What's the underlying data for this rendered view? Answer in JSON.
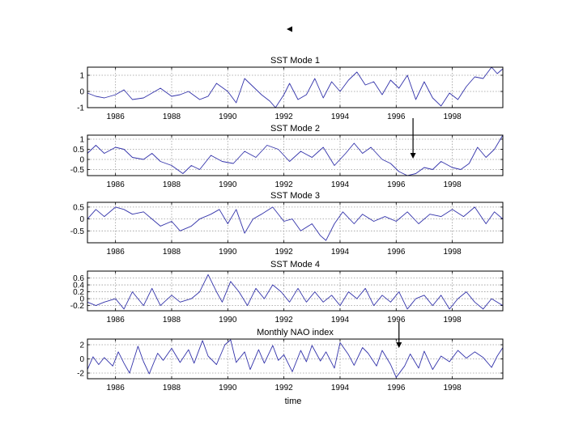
{
  "figure": {
    "marker_icon": "left-triangle-icon",
    "xlabel": "time",
    "line_color": "#3333aa",
    "grid_color": "#9a9a9a",
    "x_ticks": [
      "1986",
      "1988",
      "1990",
      "1992",
      "1994",
      "1996",
      "1998"
    ]
  },
  "chart_data": [
    {
      "type": "line",
      "title": "SST Mode 1",
      "xlim": [
        1985.0,
        1999.8
      ],
      "ylim": [
        -1,
        1.5
      ],
      "x_ticks": [
        1986,
        1988,
        1990,
        1992,
        1994,
        1996,
        1998
      ],
      "y_ticks": [
        1,
        0,
        -1
      ],
      "y_tick_labels": [
        "1",
        "0",
        "-1"
      ],
      "grid": true,
      "points": [
        [
          1985.0,
          -0.1
        ],
        [
          1985.3,
          -0.3
        ],
        [
          1985.6,
          -0.4
        ],
        [
          1986.0,
          -0.2
        ],
        [
          1986.3,
          0.1
        ],
        [
          1986.6,
          -0.5
        ],
        [
          1987.0,
          -0.4
        ],
        [
          1987.3,
          -0.1
        ],
        [
          1987.6,
          0.2
        ],
        [
          1988.0,
          -0.3
        ],
        [
          1988.3,
          -0.2
        ],
        [
          1988.6,
          0.0
        ],
        [
          1989.0,
          -0.5
        ],
        [
          1989.3,
          -0.3
        ],
        [
          1989.6,
          0.5
        ],
        [
          1990.0,
          0.0
        ],
        [
          1990.3,
          -0.7
        ],
        [
          1990.6,
          0.8
        ],
        [
          1990.9,
          0.3
        ],
        [
          1991.2,
          -0.2
        ],
        [
          1991.5,
          -0.6
        ],
        [
          1991.7,
          -1.0
        ],
        [
          1992.0,
          -0.2
        ],
        [
          1992.2,
          0.5
        ],
        [
          1992.5,
          -0.5
        ],
        [
          1992.8,
          -0.2
        ],
        [
          1993.1,
          0.8
        ],
        [
          1993.4,
          -0.4
        ],
        [
          1993.7,
          0.6
        ],
        [
          1994.0,
          0.0
        ],
        [
          1994.3,
          0.7
        ],
        [
          1994.6,
          1.2
        ],
        [
          1994.9,
          0.4
        ],
        [
          1995.2,
          0.6
        ],
        [
          1995.5,
          -0.2
        ],
        [
          1995.8,
          0.7
        ],
        [
          1996.1,
          0.2
        ],
        [
          1996.4,
          1.0
        ],
        [
          1996.7,
          -0.5
        ],
        [
          1997.0,
          0.6
        ],
        [
          1997.3,
          -0.4
        ],
        [
          1997.6,
          -0.9
        ],
        [
          1997.9,
          -0.1
        ],
        [
          1998.2,
          -0.5
        ],
        [
          1998.5,
          0.3
        ],
        [
          1998.8,
          0.9
        ],
        [
          1999.1,
          0.8
        ],
        [
          1999.4,
          1.5
        ],
        [
          1999.6,
          1.1
        ],
        [
          1999.8,
          1.4
        ]
      ]
    },
    {
      "type": "line",
      "title": "SST Mode 2",
      "xlim": [
        1985.0,
        1999.8
      ],
      "ylim": [
        -0.8,
        1.2
      ],
      "x_ticks": [
        1986,
        1988,
        1990,
        1992,
        1994,
        1996,
        1998
      ],
      "y_ticks": [
        1,
        0.5,
        0,
        -0.5
      ],
      "y_tick_labels": [
        "1",
        "0.5",
        "0",
        "-0.5"
      ],
      "grid": true,
      "points": [
        [
          1985.0,
          0.3
        ],
        [
          1985.3,
          0.7
        ],
        [
          1985.6,
          0.3
        ],
        [
          1986.0,
          0.6
        ],
        [
          1986.3,
          0.5
        ],
        [
          1986.6,
          0.1
        ],
        [
          1987.0,
          0.0
        ],
        [
          1987.3,
          0.3
        ],
        [
          1987.6,
          -0.1
        ],
        [
          1988.0,
          -0.3
        ],
        [
          1988.4,
          -0.7
        ],
        [
          1988.7,
          -0.3
        ],
        [
          1989.0,
          -0.5
        ],
        [
          1989.4,
          0.2
        ],
        [
          1989.8,
          -0.1
        ],
        [
          1990.2,
          -0.2
        ],
        [
          1990.6,
          0.4
        ],
        [
          1991.0,
          0.1
        ],
        [
          1991.4,
          0.7
        ],
        [
          1991.8,
          0.5
        ],
        [
          1992.2,
          -0.1
        ],
        [
          1992.6,
          0.4
        ],
        [
          1993.0,
          0.1
        ],
        [
          1993.4,
          0.6
        ],
        [
          1993.8,
          -0.3
        ],
        [
          1994.2,
          0.3
        ],
        [
          1994.5,
          0.8
        ],
        [
          1994.8,
          0.3
        ],
        [
          1995.1,
          0.6
        ],
        [
          1995.5,
          0.0
        ],
        [
          1995.8,
          -0.2
        ],
        [
          1996.1,
          -0.6
        ],
        [
          1996.4,
          -0.8
        ],
        [
          1996.7,
          -0.7
        ],
        [
          1997.0,
          -0.4
        ],
        [
          1997.3,
          -0.5
        ],
        [
          1997.6,
          -0.1
        ],
        [
          1998.0,
          -0.4
        ],
        [
          1998.3,
          -0.5
        ],
        [
          1998.6,
          -0.2
        ],
        [
          1998.9,
          0.6
        ],
        [
          1999.2,
          0.1
        ],
        [
          1999.5,
          0.5
        ],
        [
          1999.8,
          1.2
        ]
      ]
    },
    {
      "type": "line",
      "title": "SST Mode 3",
      "xlim": [
        1985.0,
        1999.8
      ],
      "ylim": [
        -1.0,
        0.7
      ],
      "x_ticks": [
        1986,
        1988,
        1990,
        1992,
        1994,
        1996,
        1998
      ],
      "y_ticks": [
        0.5,
        0,
        -0.5
      ],
      "y_tick_labels": [
        "0.5",
        "0",
        "-0.5"
      ],
      "grid": true,
      "points": [
        [
          1985.0,
          0.0
        ],
        [
          1985.3,
          0.4
        ],
        [
          1985.6,
          0.1
        ],
        [
          1986.0,
          0.5
        ],
        [
          1986.3,
          0.4
        ],
        [
          1986.6,
          0.2
        ],
        [
          1987.0,
          0.3
        ],
        [
          1987.3,
          0.0
        ],
        [
          1987.6,
          -0.3
        ],
        [
          1988.0,
          -0.1
        ],
        [
          1988.3,
          -0.5
        ],
        [
          1988.7,
          -0.3
        ],
        [
          1989.0,
          0.0
        ],
        [
          1989.4,
          0.2
        ],
        [
          1989.7,
          0.4
        ],
        [
          1990.0,
          -0.2
        ],
        [
          1990.3,
          0.4
        ],
        [
          1990.6,
          -0.6
        ],
        [
          1990.9,
          0.0
        ],
        [
          1991.2,
          0.2
        ],
        [
          1991.6,
          0.5
        ],
        [
          1992.0,
          -0.1
        ],
        [
          1992.3,
          0.0
        ],
        [
          1992.6,
          -0.5
        ],
        [
          1993.0,
          -0.2
        ],
        [
          1993.3,
          -0.7
        ],
        [
          1993.5,
          -0.9
        ],
        [
          1993.8,
          -0.2
        ],
        [
          1994.1,
          0.3
        ],
        [
          1994.5,
          -0.2
        ],
        [
          1994.8,
          0.2
        ],
        [
          1995.2,
          -0.1
        ],
        [
          1995.6,
          0.1
        ],
        [
          1996.0,
          -0.1
        ],
        [
          1996.4,
          0.3
        ],
        [
          1996.8,
          -0.2
        ],
        [
          1997.2,
          0.2
        ],
        [
          1997.6,
          0.1
        ],
        [
          1998.0,
          0.4
        ],
        [
          1998.4,
          0.1
        ],
        [
          1998.8,
          0.5
        ],
        [
          1999.2,
          -0.2
        ],
        [
          1999.5,
          0.3
        ],
        [
          1999.8,
          0.0
        ]
      ]
    },
    {
      "type": "line",
      "title": "SST Mode 4",
      "xlim": [
        1985.0,
        1999.8
      ],
      "ylim": [
        -0.35,
        0.8
      ],
      "x_ticks": [
        1986,
        1988,
        1990,
        1992,
        1994,
        1996,
        1998
      ],
      "y_ticks": [
        0.6,
        0.4,
        0.2,
        0,
        -0.2
      ],
      "y_tick_labels": [
        "0.6",
        "0.4",
        "0.2",
        "0",
        "-0.2"
      ],
      "grid": true,
      "points": [
        [
          1985.0,
          -0.1
        ],
        [
          1985.3,
          -0.2
        ],
        [
          1985.6,
          -0.1
        ],
        [
          1986.0,
          0.0
        ],
        [
          1986.3,
          -0.3
        ],
        [
          1986.6,
          0.2
        ],
        [
          1986.8,
          0.0
        ],
        [
          1987.0,
          -0.2
        ],
        [
          1987.3,
          0.3
        ],
        [
          1987.6,
          -0.2
        ],
        [
          1988.0,
          0.1
        ],
        [
          1988.3,
          -0.1
        ],
        [
          1988.7,
          0.0
        ],
        [
          1989.0,
          0.2
        ],
        [
          1989.3,
          0.7
        ],
        [
          1989.6,
          0.2
        ],
        [
          1989.8,
          -0.1
        ],
        [
          1990.1,
          0.5
        ],
        [
          1990.4,
          0.2
        ],
        [
          1990.7,
          -0.2
        ],
        [
          1991.0,
          0.3
        ],
        [
          1991.3,
          0.0
        ],
        [
          1991.6,
          0.4
        ],
        [
          1991.9,
          0.2
        ],
        [
          1992.2,
          -0.1
        ],
        [
          1992.5,
          0.3
        ],
        [
          1992.8,
          -0.1
        ],
        [
          1993.1,
          0.2
        ],
        [
          1993.4,
          -0.1
        ],
        [
          1993.7,
          0.1
        ],
        [
          1994.0,
          -0.2
        ],
        [
          1994.3,
          0.2
        ],
        [
          1994.6,
          0.0
        ],
        [
          1994.9,
          0.3
        ],
        [
          1995.2,
          -0.2
        ],
        [
          1995.5,
          0.1
        ],
        [
          1995.8,
          -0.1
        ],
        [
          1996.1,
          0.2
        ],
        [
          1996.4,
          -0.3
        ],
        [
          1996.7,
          0.0
        ],
        [
          1997.0,
          0.1
        ],
        [
          1997.3,
          -0.2
        ],
        [
          1997.6,
          0.1
        ],
        [
          1997.9,
          -0.3
        ],
        [
          1998.2,
          0.0
        ],
        [
          1998.5,
          0.2
        ],
        [
          1998.8,
          -0.1
        ],
        [
          1999.1,
          -0.3
        ],
        [
          1999.4,
          0.0
        ],
        [
          1999.8,
          -0.2
        ]
      ]
    },
    {
      "type": "line",
      "title": "Monthly NAO index",
      "xlim": [
        1985.0,
        1999.8
      ],
      "ylim": [
        -2.8,
        2.8
      ],
      "x_ticks": [
        1986,
        1988,
        1990,
        1992,
        1994,
        1996,
        1998
      ],
      "y_ticks": [
        2,
        0,
        -2
      ],
      "y_tick_labels": [
        "2",
        "0",
        "-2"
      ],
      "grid": true,
      "points": [
        [
          1985.0,
          -1.5
        ],
        [
          1985.2,
          0.3
        ],
        [
          1985.4,
          -0.8
        ],
        [
          1985.6,
          0.2
        ],
        [
          1985.9,
          -1.0
        ],
        [
          1986.1,
          1.0
        ],
        [
          1986.3,
          -0.6
        ],
        [
          1986.5,
          -2.0
        ],
        [
          1986.8,
          1.8
        ],
        [
          1987.0,
          -0.4
        ],
        [
          1987.2,
          -2.1
        ],
        [
          1987.5,
          0.8
        ],
        [
          1987.7,
          -0.2
        ],
        [
          1988.0,
          1.5
        ],
        [
          1988.3,
          -0.5
        ],
        [
          1988.6,
          1.3
        ],
        [
          1988.8,
          -0.6
        ],
        [
          1989.1,
          2.6
        ],
        [
          1989.3,
          0.4
        ],
        [
          1989.6,
          -0.8
        ],
        [
          1989.9,
          2.0
        ],
        [
          1990.1,
          2.7
        ],
        [
          1990.3,
          -0.5
        ],
        [
          1990.6,
          1.0
        ],
        [
          1990.8,
          -1.5
        ],
        [
          1991.1,
          1.3
        ],
        [
          1991.3,
          -0.6
        ],
        [
          1991.6,
          1.9
        ],
        [
          1991.8,
          -0.2
        ],
        [
          1992.0,
          0.6
        ],
        [
          1992.3,
          -1.8
        ],
        [
          1992.6,
          1.2
        ],
        [
          1992.8,
          -0.4
        ],
        [
          1993.0,
          1.9
        ],
        [
          1993.3,
          -0.3
        ],
        [
          1993.5,
          1.0
        ],
        [
          1993.8,
          -1.3
        ],
        [
          1994.0,
          2.3
        ],
        [
          1994.3,
          0.6
        ],
        [
          1994.5,
          -0.9
        ],
        [
          1994.8,
          1.6
        ],
        [
          1995.0,
          0.8
        ],
        [
          1995.3,
          -1.0
        ],
        [
          1995.5,
          1.2
        ],
        [
          1995.8,
          -0.8
        ],
        [
          1996.0,
          -2.6
        ],
        [
          1996.3,
          -1.0
        ],
        [
          1996.5,
          0.7
        ],
        [
          1996.8,
          -1.3
        ],
        [
          1997.0,
          1.1
        ],
        [
          1997.3,
          -1.5
        ],
        [
          1997.6,
          0.4
        ],
        [
          1997.9,
          -0.4
        ],
        [
          1998.2,
          1.2
        ],
        [
          1998.5,
          0.1
        ],
        [
          1998.8,
          1.0
        ],
        [
          1999.1,
          0.2
        ],
        [
          1999.4,
          -1.2
        ],
        [
          1999.6,
          0.4
        ],
        [
          1999.8,
          1.6
        ]
      ]
    }
  ],
  "annotations": [
    {
      "panel": 1,
      "x": 1996.6,
      "label": "arrow"
    },
    {
      "panel": 4,
      "x": 1996.1,
      "label": "arrow"
    }
  ]
}
